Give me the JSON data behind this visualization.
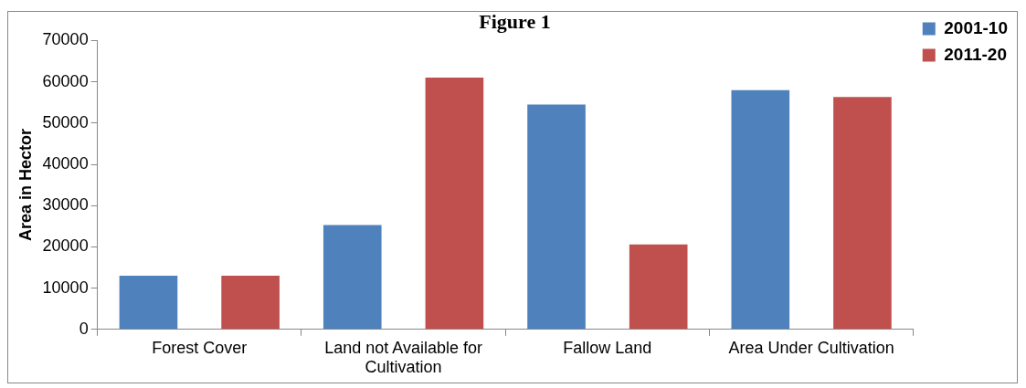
{
  "chart_data": {
    "type": "bar",
    "title": "Figure 1",
    "ylabel": "Area in Hector",
    "categories": [
      "Forest Cover",
      "Land not Available for Cultivation",
      "Fallow Land",
      "Area Under Cultivation"
    ],
    "series": [
      {
        "name": "2001-10",
        "color": "#4f81bd",
        "values": [
          13000,
          25300,
          54500,
          58000
        ]
      },
      {
        "name": "2011-20",
        "color": "#c0504d",
        "values": [
          13000,
          61000,
          20600,
          56300
        ]
      }
    ],
    "ylim": [
      0,
      70000
    ],
    "yticks": [
      0,
      10000,
      20000,
      30000,
      40000,
      50000,
      60000,
      70000
    ],
    "grid": false,
    "legend": "top right"
  }
}
